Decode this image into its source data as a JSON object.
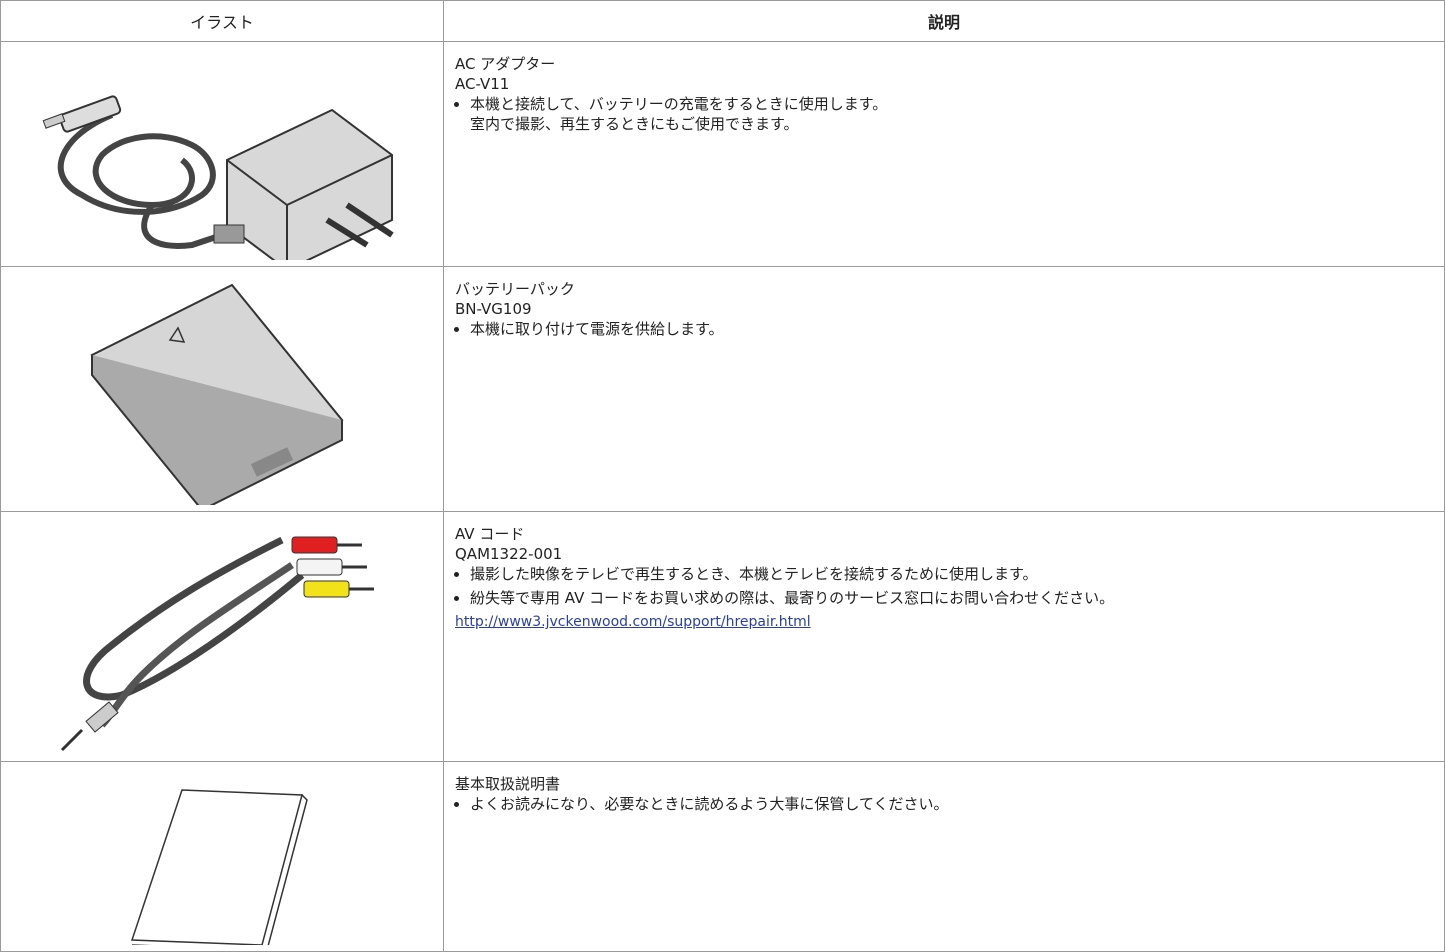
{
  "table": {
    "header": [
      "イラスト",
      "説明"
    ],
    "rows": [
      {
        "name": "AC アダプター",
        "model": "AC-V11",
        "notes": [
          [
            "本機と接続して、バッテリーの充電をするときに使用します。",
            "室内で撮影、再生するときにもご使用できます。"
          ]
        ]
      },
      {
        "name": "バッテリーパック",
        "model": "BN-VG109",
        "notes": [
          [
            "本機に取り付けて電源を供給します。"
          ]
        ]
      },
      {
        "name": "AV コード",
        "model": "QAM1322-001",
        "notes": [
          [
            "撮影した映像をテレビで再生するとき、本機とテレビを接続するために使用します。"
          ],
          [
            "紛失等で専用 AV コードをお買い求めの際は、最寄りのサービス窓口にお問い合わせください。"
          ]
        ],
        "link": "http://www3.jvckenwood.com/support/hrepair.html"
      },
      {
        "name": "基本取扱説明書",
        "notes": [
          [
            "よくお読みになり、必要なときに読めるよう大事に保管してください。"
          ]
        ]
      }
    ]
  }
}
